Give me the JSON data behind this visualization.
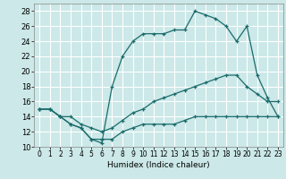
{
  "xlabel": "Humidex (Indice chaleur)",
  "xlim": [
    -0.5,
    23.5
  ],
  "ylim": [
    10,
    29
  ],
  "xticks": [
    0,
    1,
    2,
    3,
    4,
    5,
    6,
    7,
    8,
    9,
    10,
    11,
    12,
    13,
    14,
    15,
    16,
    17,
    18,
    19,
    20,
    21,
    22,
    23
  ],
  "yticks": [
    10,
    12,
    14,
    16,
    18,
    20,
    22,
    24,
    26,
    28
  ],
  "bg_color": "#cce8e8",
  "grid_color": "#b0d4d4",
  "line_color": "#1a6b6b",
  "curves": [
    {
      "x": [
        0,
        1,
        2,
        3,
        4,
        5,
        6,
        7,
        8,
        9,
        10,
        11,
        12,
        13,
        14,
        15,
        16,
        17,
        18,
        19,
        20,
        21,
        22,
        23
      ],
      "y": [
        15,
        15,
        14,
        13,
        12.5,
        11,
        11,
        11,
        12,
        12.5,
        13,
        13,
        13,
        13,
        13.5,
        14,
        14,
        14,
        14,
        14,
        14,
        14,
        14,
        14
      ]
    },
    {
      "x": [
        0,
        1,
        2,
        3,
        4,
        5,
        6,
        7,
        8,
        9,
        10,
        11,
        12,
        13,
        14,
        15,
        16,
        17,
        18,
        19,
        20,
        21,
        22,
        23
      ],
      "y": [
        15,
        15,
        14,
        14,
        13,
        12.5,
        12,
        12.5,
        13.5,
        14.5,
        15,
        16,
        16.5,
        17,
        17.5,
        18,
        18.5,
        19,
        19.5,
        19.5,
        18,
        17,
        16,
        16
      ]
    },
    {
      "x": [
        0,
        1,
        2,
        3,
        4,
        5,
        6,
        7,
        8,
        9,
        10,
        11,
        12,
        13,
        14,
        15,
        16,
        17,
        18,
        19,
        20,
        21,
        22,
        23
      ],
      "y": [
        15,
        15,
        14,
        13,
        12.5,
        11,
        10.5,
        18,
        22,
        24,
        25,
        25,
        25,
        25.5,
        25.5,
        28,
        27.5,
        27,
        26,
        24,
        26,
        19.5,
        16.5,
        14
      ]
    }
  ]
}
